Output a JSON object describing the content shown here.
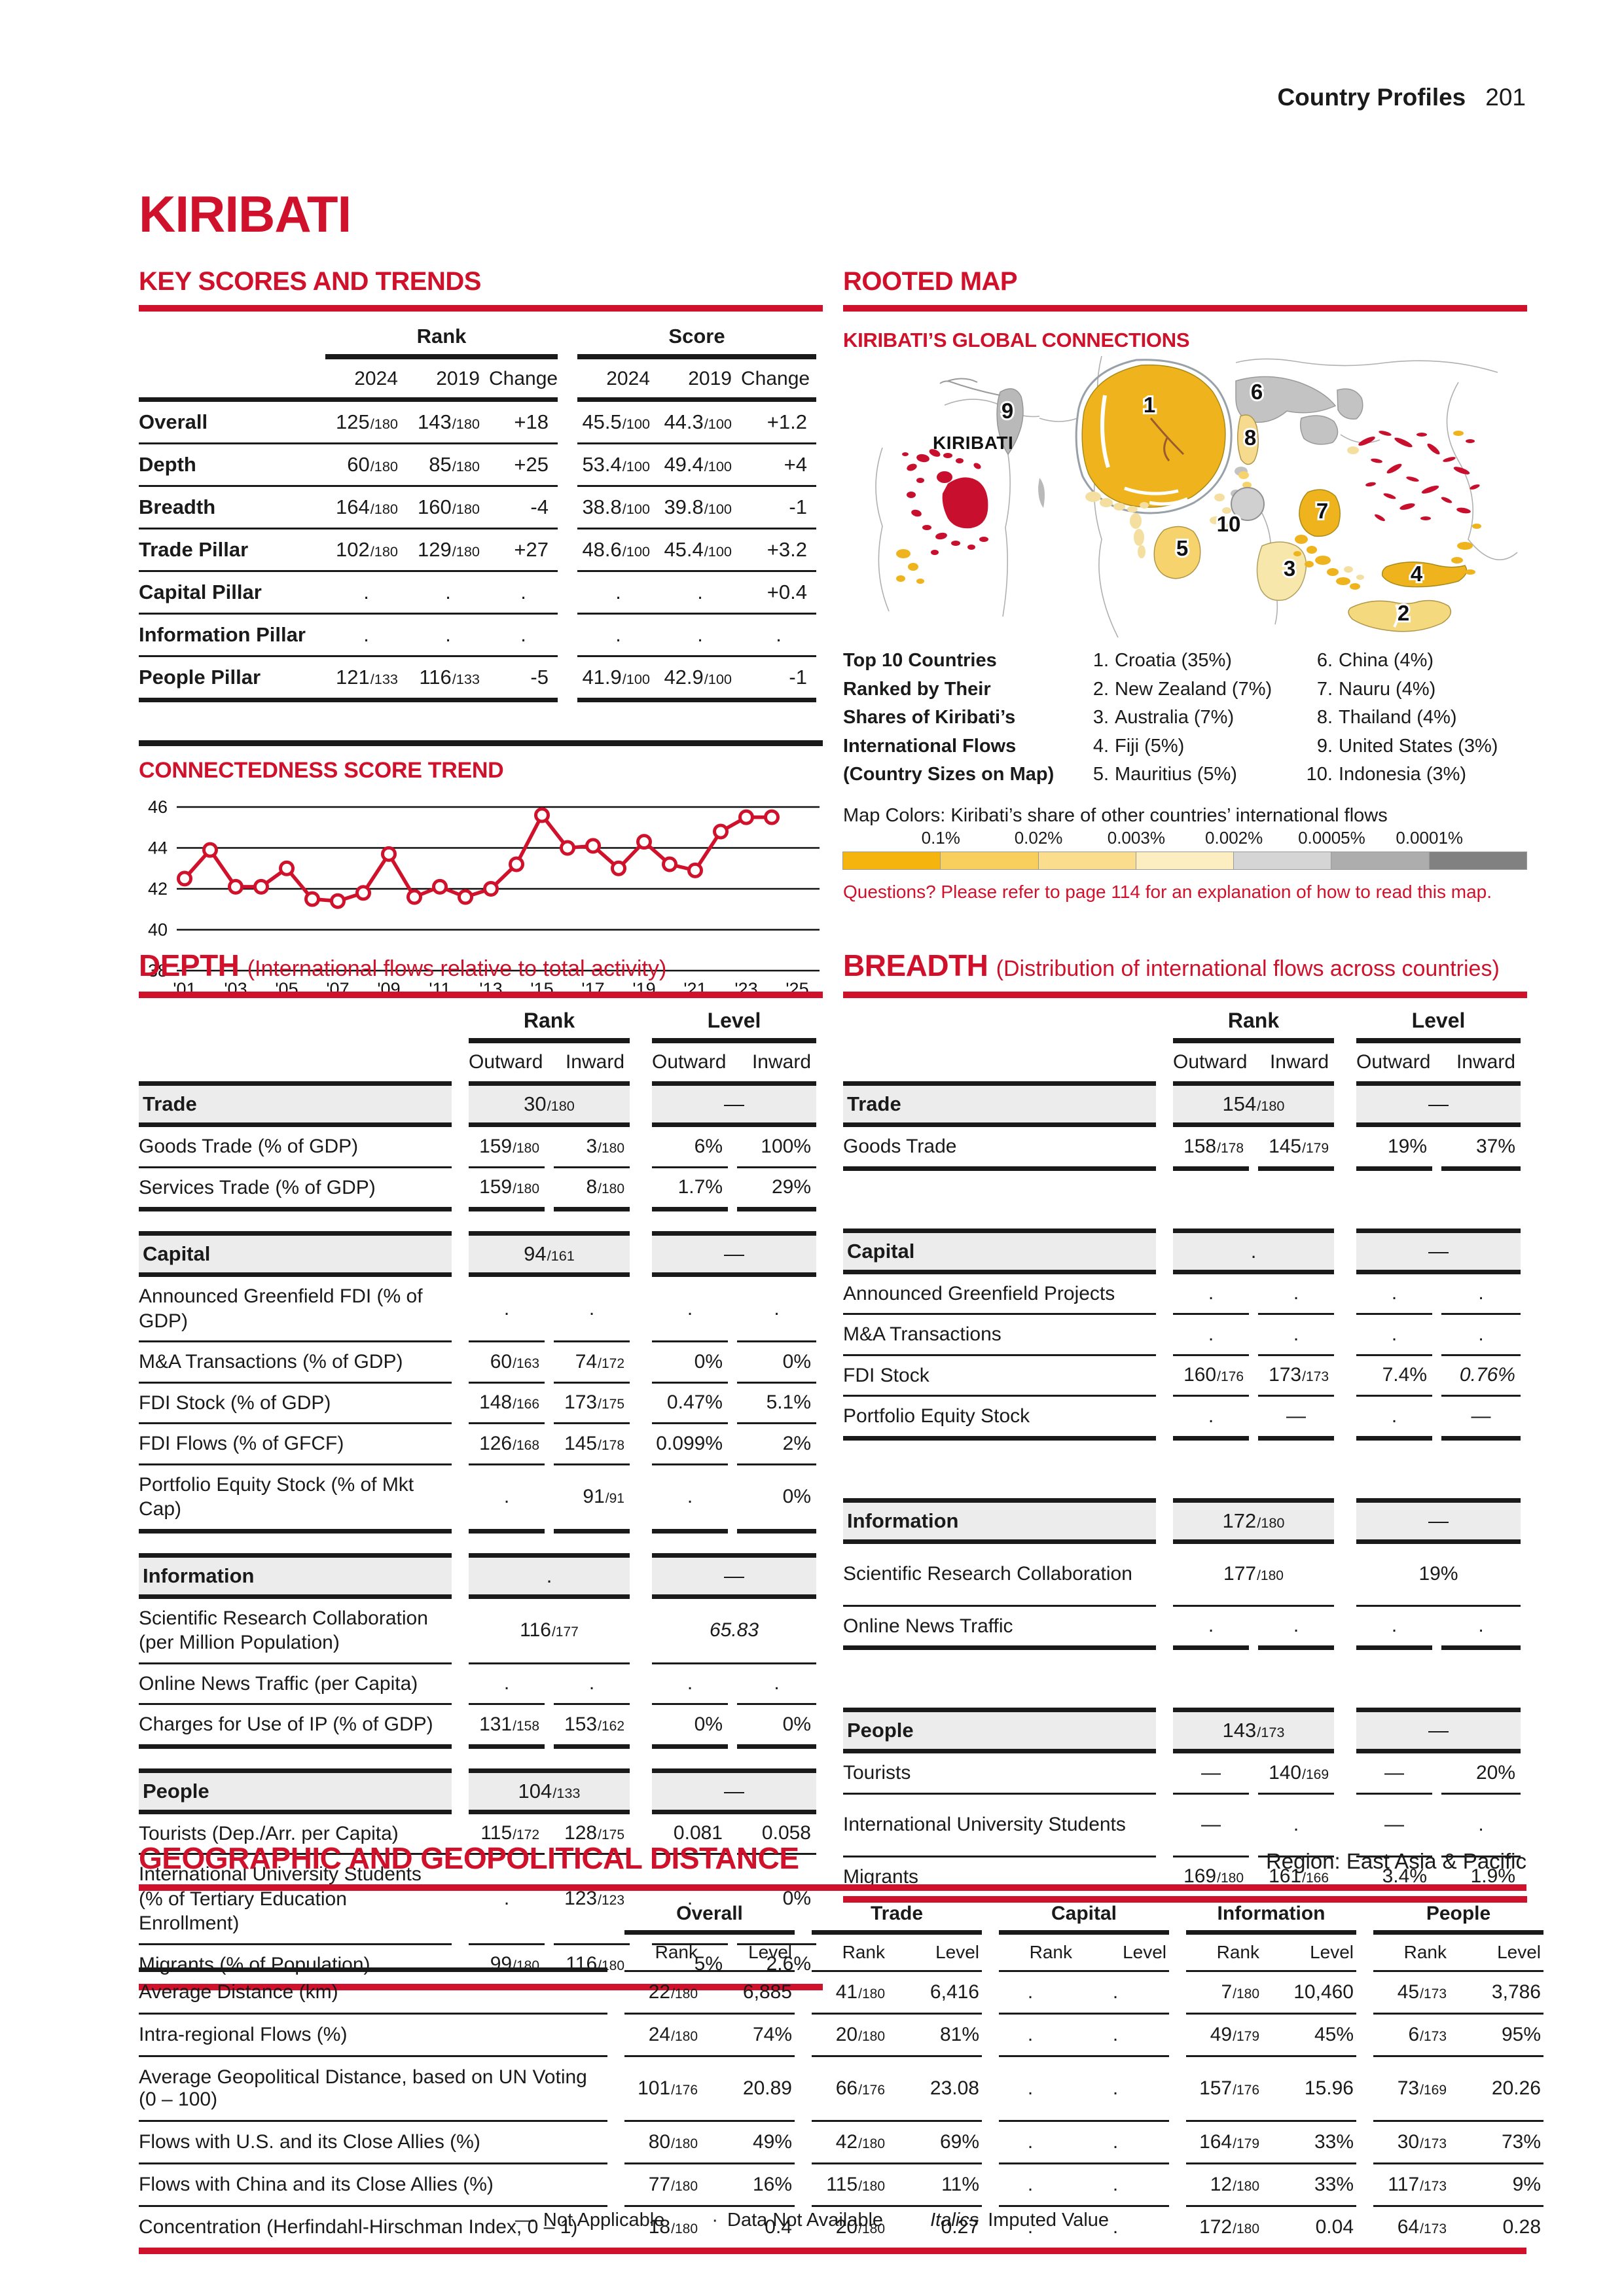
{
  "page": {
    "header_title": "Country Profiles",
    "page_number": "201",
    "country": "KIRIBATI"
  },
  "key_scores": {
    "heading": "KEY SCORES AND TRENDS",
    "groups": [
      "Rank",
      "Score"
    ],
    "columns": [
      "2024",
      "2019",
      "Change"
    ],
    "rows": [
      {
        "label": "Overall",
        "cells": [
          [
            "125",
            "/180"
          ],
          [
            "143",
            "/180"
          ],
          "+18",
          [
            "45.5",
            "/100"
          ],
          [
            "44.3",
            "/100"
          ],
          "+1.2"
        ]
      },
      {
        "label": "Depth",
        "cells": [
          [
            "60",
            "/180"
          ],
          [
            "85",
            "/180"
          ],
          "+25",
          [
            "53.4",
            "/100"
          ],
          [
            "49.4",
            "/100"
          ],
          "+4"
        ]
      },
      {
        "label": "Breadth",
        "cells": [
          [
            "164",
            "/180"
          ],
          [
            "160",
            "/180"
          ],
          "-4",
          [
            "38.8",
            "/100"
          ],
          [
            "39.8",
            "/100"
          ],
          "-1"
        ]
      },
      {
        "label": "Trade Pillar",
        "cells": [
          [
            "102",
            "/180"
          ],
          [
            "129",
            "/180"
          ],
          "+27",
          [
            "48.6",
            "/100"
          ],
          [
            "45.4",
            "/100"
          ],
          "+3.2"
        ]
      },
      {
        "label": "Capital Pillar",
        "cells": [
          ".",
          ".",
          ".",
          ".",
          ".",
          "+0.4"
        ]
      },
      {
        "label": "Information Pillar",
        "cells": [
          ".",
          ".",
          ".",
          ".",
          ".",
          "."
        ]
      },
      {
        "label": "People Pillar",
        "cells": [
          [
            "121",
            "/133"
          ],
          [
            "116",
            "/133"
          ],
          "-5",
          [
            "41.9",
            "/100"
          ],
          [
            "42.9",
            "/100"
          ],
          "-1"
        ]
      }
    ]
  },
  "chart_data": {
    "type": "line",
    "title": "CONNECTEDNESS SCORE TREND",
    "x": [
      2001,
      2002,
      2003,
      2004,
      2005,
      2006,
      2007,
      2008,
      2009,
      2010,
      2011,
      2012,
      2013,
      2014,
      2015,
      2016,
      2017,
      2018,
      2019,
      2020,
      2021,
      2022,
      2023,
      2024
    ],
    "values": [
      42.5,
      43.9,
      42.1,
      42.1,
      43.0,
      41.5,
      41.4,
      41.8,
      43.7,
      41.6,
      42.1,
      41.6,
      42.0,
      43.2,
      45.6,
      44.0,
      44.1,
      43.0,
      44.3,
      43.2,
      42.9,
      44.8,
      45.5,
      45.5
    ],
    "ylim": [
      38,
      46
    ],
    "yticks": [
      46,
      44,
      42,
      40,
      38
    ],
    "xtick_labels": [
      "'01",
      "'03",
      "'05",
      "'07",
      "'09",
      "'11",
      "'13",
      "'15",
      "'17",
      "'19",
      "'21",
      "'23",
      "'25"
    ],
    "grid": true,
    "legend_position": "none",
    "line_color": "#d0112b"
  },
  "rooted_map": {
    "heading": "ROOTED MAP",
    "subheading": "KIRIBATI’S GLOBAL CONNECTIONS",
    "map_label": "KIRIBATI",
    "caption_lines": [
      "Top 10 Countries",
      "Ranked by Their",
      "Shares of Kiribati’s",
      "International Flows",
      "(Country Sizes on Map)"
    ],
    "top10": [
      {
        "n": "1.",
        "name": "Croatia",
        "share": "(35%)"
      },
      {
        "n": "2.",
        "name": "New Zealand",
        "share": "(7%)"
      },
      {
        "n": "3.",
        "name": "Australia",
        "share": "(7%)"
      },
      {
        "n": "4.",
        "name": "Fiji",
        "share": "(5%)"
      },
      {
        "n": "5.",
        "name": "Mauritius",
        "share": "(5%)"
      },
      {
        "n": "6.",
        "name": "China",
        "share": "(4%)"
      },
      {
        "n": "7.",
        "name": "Nauru",
        "share": "(4%)"
      },
      {
        "n": "8.",
        "name": "Thailand",
        "share": "(4%)"
      },
      {
        "n": "9.",
        "name": "United States",
        "share": "(3%)"
      },
      {
        "n": "10.",
        "name": "Indonesia",
        "share": "(3%)"
      }
    ],
    "markers": [
      {
        "n": "1",
        "country": "Croatia"
      },
      {
        "n": "2",
        "country": "New Zealand"
      },
      {
        "n": "3",
        "country": "Australia"
      },
      {
        "n": "4",
        "country": "Fiji"
      },
      {
        "n": "5",
        "country": "Mauritius"
      },
      {
        "n": "6",
        "country": "China"
      },
      {
        "n": "7",
        "country": "Nauru"
      },
      {
        "n": "8",
        "country": "Thailand"
      },
      {
        "n": "9",
        "country": "United States"
      },
      {
        "n": "10",
        "country": "Indonesia"
      }
    ],
    "map_colors_label": "Map Colors: Kiribati’s share of other countries’ international flows",
    "scale_labels": [
      "0.1%",
      "0.02%",
      "0.003%",
      "0.002%",
      "0.0005%",
      "0.0001%"
    ],
    "scale_colors": [
      "#f5b40e",
      "#f8cf5d",
      "#fadd8d",
      "#fdeec2",
      "#d5d5d5",
      "#adadad",
      "#818181"
    ],
    "kiribati_color": "#c8102e",
    "note": "Questions? Please refer to page 114 for an explanation of how to read this map."
  },
  "depth": {
    "heading": "DEPTH",
    "subtitle": "(International flows relative to total activity)",
    "col_groups": [
      "Rank",
      "Level"
    ],
    "col_subheaders": [
      "Outward",
      "Inward",
      "Outward",
      "Inward"
    ],
    "sections": [
      {
        "label": "Trade",
        "rank": [
          "30",
          "/180"
        ],
        "level": "—",
        "rows": [
          {
            "label": "Goods Trade (% of GDP)",
            "cells": [
              [
                "159",
                "/180"
              ],
              [
                "3",
                "/180"
              ],
              "6%",
              "100%"
            ]
          },
          {
            "label": "Services Trade (% of GDP)",
            "cells": [
              [
                "159",
                "/180"
              ],
              [
                "8",
                "/180"
              ],
              "1.7%",
              "29%"
            ]
          }
        ]
      },
      {
        "label": "Capital",
        "rank": [
          "94",
          "/161"
        ],
        "level": "—",
        "rows": [
          {
            "label": "Announced Greenfield FDI (% of GDP)",
            "cells": [
              ".",
              ".",
              ".",
              "."
            ]
          },
          {
            "label": "M&A Transactions (% of GDP)",
            "cells": [
              [
                "60",
                "/163"
              ],
              [
                "74",
                "/172"
              ],
              "0%",
              "0%"
            ]
          },
          {
            "label": "FDI Stock (% of GDP)",
            "cells": [
              [
                "148",
                "/166"
              ],
              [
                "173",
                "/175"
              ],
              "0.47%",
              "5.1%"
            ]
          },
          {
            "label": "FDI Flows (% of GFCF)",
            "cells": [
              [
                "126",
                "/168"
              ],
              [
                "145",
                "/178"
              ],
              "0.099%",
              "2%"
            ]
          },
          {
            "label": "Portfolio Equity Stock (% of Mkt Cap)",
            "cells": [
              ".",
              [
                "91",
                "/91"
              ],
              ".",
              "0%"
            ]
          }
        ]
      },
      {
        "label": "Information",
        "rank": ".",
        "level": "—",
        "rows": [
          {
            "label": "Scientific Research Collaboration (per Million Population)",
            "span": true,
            "rank": [
              "116",
              "/177"
            ],
            "level": {
              "v": "65.83",
              "i": true
            }
          },
          {
            "label": "Online News Traffic (per Capita)",
            "cells": [
              ".",
              ".",
              ".",
              "."
            ]
          },
          {
            "label": "Charges for Use of IP (% of GDP)",
            "cells": [
              [
                "131",
                "/158"
              ],
              [
                "153",
                "/162"
              ],
              "0%",
              "0%"
            ]
          }
        ]
      },
      {
        "label": "People",
        "rank": [
          "104",
          "/133"
        ],
        "level": "—",
        "rows": [
          {
            "label": "Tourists (Dep./Arr. per Capita)",
            "cells": [
              [
                "115",
                "/172"
              ],
              [
                "128",
                "/175"
              ],
              "0.081",
              "0.058"
            ]
          },
          {
            "label": "International University Students (% of Tertiary Education Enrollment)",
            "cells": [
              ".",
              [
                "123",
                "/123"
              ],
              ".",
              "0%"
            ]
          },
          {
            "label": "Migrants (% of Population)",
            "cells": [
              [
                "99",
                "/180"
              ],
              [
                "116",
                "/180"
              ],
              "5%",
              "2.6%"
            ]
          }
        ]
      }
    ]
  },
  "breadth": {
    "heading": "BREADTH",
    "subtitle": "(Distribution of international flows across countries)",
    "col_groups": [
      "Rank",
      "Level"
    ],
    "col_subheaders": [
      "Outward",
      "Inward",
      "Outward",
      "Inward"
    ],
    "sections": [
      {
        "label": "Trade",
        "rank": [
          "154",
          "/180"
        ],
        "level": "—",
        "rows": [
          {
            "label": "Goods Trade",
            "cells": [
              [
                "158",
                "/178"
              ],
              [
                "145",
                "/179"
              ],
              "19%",
              "37%"
            ]
          }
        ]
      },
      {
        "label": "Capital",
        "rank": ".",
        "level": "—",
        "rows": [
          {
            "label": "Announced Greenfield Projects",
            "cells": [
              ".",
              ".",
              ".",
              "."
            ]
          },
          {
            "label": "M&A Transactions",
            "cells": [
              ".",
              ".",
              ".",
              "."
            ]
          },
          {
            "label": "FDI Stock",
            "cells": [
              [
                "160",
                "/176"
              ],
              [
                "173",
                "/173"
              ],
              "7.4%",
              {
                "v": "0.76%",
                "i": true
              }
            ]
          },
          {
            "label": "Portfolio Equity Stock",
            "cells": [
              ".",
              "—",
              ".",
              "—"
            ]
          }
        ]
      },
      {
        "label": "Information",
        "rank": [
          "172",
          "/180"
        ],
        "level": "—",
        "rows": [
          {
            "label": "Scientific Research Collaboration",
            "span": true,
            "rank": [
              "177",
              "/180"
            ],
            "level": {
              "v": "19%",
              "i": false
            }
          },
          {
            "label": "Online News Traffic",
            "cells": [
              ".",
              ".",
              ".",
              "."
            ]
          }
        ]
      },
      {
        "label": "People",
        "rank": [
          "143",
          "/173"
        ],
        "level": "—",
        "rows": [
          {
            "label": "Tourists",
            "cells": [
              "—",
              [
                "140",
                "/169"
              ],
              "—",
              "20%"
            ]
          },
          {
            "label": "International University Students",
            "cells": [
              "—",
              ".",
              "—",
              "."
            ]
          },
          {
            "label": "Migrants",
            "cells": [
              [
                "169",
                "/180"
              ],
              [
                "161",
                "/166"
              ],
              "3.4%",
              "1.9%"
            ]
          }
        ]
      }
    ]
  },
  "geo": {
    "heading": "GEOGRAPHIC AND GEOPOLITICAL DISTANCE",
    "region_label": "Region: East Asia & Pacific",
    "groups": [
      "Overall",
      "Trade",
      "Capital",
      "Information",
      "People"
    ],
    "sub": [
      "Rank",
      "Level"
    ],
    "rows": [
      {
        "label": "Average Distance (km)",
        "groups": [
          {
            "r": [
              "22",
              "/180"
            ],
            "l": "6,885"
          },
          {
            "r": [
              "41",
              "/180"
            ],
            "l": "6,416"
          },
          {
            "r": ".",
            "l": "."
          },
          {
            "r": [
              "7",
              "/180"
            ],
            "l": "10,460"
          },
          {
            "r": [
              "45",
              "/173"
            ],
            "l": "3,786"
          }
        ]
      },
      {
        "label": "Intra-regional Flows (%)",
        "groups": [
          {
            "r": [
              "24",
              "/180"
            ],
            "l": "74%"
          },
          {
            "r": [
              "20",
              "/180"
            ],
            "l": "81%"
          },
          {
            "r": ".",
            "l": "."
          },
          {
            "r": [
              "49",
              "/179"
            ],
            "l": "45%"
          },
          {
            "r": [
              "6",
              "/173"
            ],
            "l": "95%"
          }
        ]
      },
      {
        "label": "Average Geopolitical Distance, based on UN Voting (0 – 100)",
        "groups": [
          {
            "r": [
              "101",
              "/176"
            ],
            "l": "20.89"
          },
          {
            "r": [
              "66",
              "/176"
            ],
            "l": "23.08"
          },
          {
            "r": ".",
            "l": "."
          },
          {
            "r": [
              "157",
              "/176"
            ],
            "l": "15.96"
          },
          {
            "r": [
              "73",
              "/169"
            ],
            "l": "20.26"
          }
        ]
      },
      {
        "label": "Flows with U.S. and its Close Allies (%)",
        "groups": [
          {
            "r": [
              "80",
              "/180"
            ],
            "l": "49%"
          },
          {
            "r": [
              "42",
              "/180"
            ],
            "l": "69%"
          },
          {
            "r": ".",
            "l": "."
          },
          {
            "r": [
              "164",
              "/179"
            ],
            "l": "33%"
          },
          {
            "r": [
              "30",
              "/173"
            ],
            "l": "73%"
          }
        ]
      },
      {
        "label": "Flows with China and its Close Allies (%)",
        "groups": [
          {
            "r": [
              "77",
              "/180"
            ],
            "l": "16%"
          },
          {
            "r": [
              "115",
              "/180"
            ],
            "l": "11%"
          },
          {
            "r": ".",
            "l": "."
          },
          {
            "r": [
              "12",
              "/180"
            ],
            "l": "33%"
          },
          {
            "r": [
              "117",
              "/173"
            ],
            "l": "9%"
          }
        ]
      },
      {
        "label": "Concentration (Herfindahl-Hirschman Index, 0 – 1)",
        "groups": [
          {
            "r": [
              "18",
              "/180"
            ],
            "l": "0.4"
          },
          {
            "r": [
              "20",
              "/180"
            ],
            "l": "0.27"
          },
          {
            "r": ".",
            "l": "."
          },
          {
            "r": [
              "172",
              "/180"
            ],
            "l": "0.04"
          },
          {
            "r": [
              "64",
              "/173"
            ],
            "l": "0.28"
          }
        ]
      }
    ]
  },
  "footer": {
    "items": [
      {
        "symbol": "—",
        "text": "Not Applicable"
      },
      {
        "symbol": "·",
        "text": "Data Not Available"
      },
      {
        "symbol": "Italics",
        "text": "Imputed Value"
      }
    ]
  }
}
